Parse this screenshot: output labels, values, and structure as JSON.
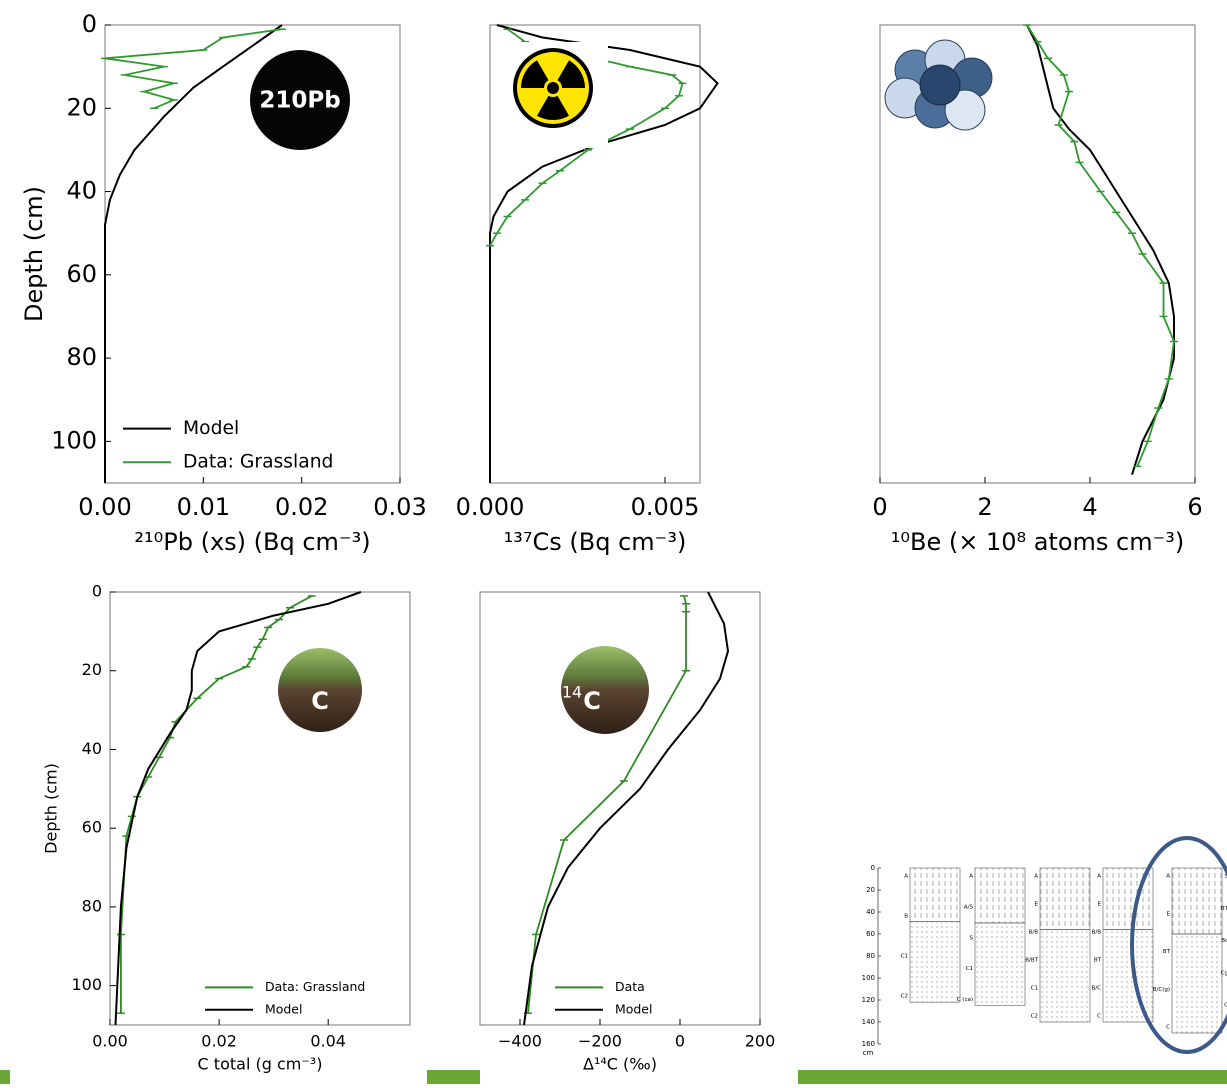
{
  "chart_data": [
    {
      "type": "line",
      "xlabel": "²¹⁰Pb (xs) (Bq cm⁻³)",
      "ylabel": "Depth (cm)",
      "annotation": "210Pb",
      "xlim": [
        0,
        0.03
      ],
      "xticks": [
        {
          "value": 0,
          "label": "0.00"
        },
        0.01,
        0.02,
        0.03
      ],
      "ylim": [
        0,
        110
      ],
      "yticks": [
        0,
        20,
        40,
        60,
        80,
        100
      ],
      "y_inverted": true,
      "legend": "lower left",
      "series": [
        {
          "name": "Model",
          "color": "#000000",
          "x": [
            0.018,
            0.015,
            0.012,
            0.009,
            0.006,
            0.003,
            0.0015,
            0.0005,
            0,
            0
          ],
          "y": [
            0,
            5,
            10,
            15,
            22,
            30,
            36,
            42,
            48,
            110
          ]
        },
        {
          "name": "Data: Grassland",
          "color": "#2e9a2e",
          "x": [
            0.018,
            0.012,
            0.01,
            0,
            0.006,
            0.002,
            0.007,
            0.004,
            0.007,
            0.005
          ],
          "y": [
            1,
            3,
            6,
            8,
            10,
            12,
            14,
            16,
            18,
            20
          ]
        }
      ]
    },
    {
      "type": "line",
      "xlabel": "¹³⁷Cs (Bq cm⁻³)",
      "xlim": [
        0,
        0.006
      ],
      "xticks": [
        {
          "value": 0,
          "label": "0.000"
        },
        0.005
      ],
      "ylim": [
        0,
        110
      ],
      "y_inverted": true,
      "series": [
        {
          "color": "#000000",
          "x": [
            0.0002,
            0.0015,
            0.004,
            0.006,
            0.0065,
            0.006,
            0.005,
            0.003,
            0.0015,
            0.0005,
            0.0001,
            0,
            0
          ],
          "y": [
            0,
            3,
            6,
            10,
            14,
            20,
            24,
            29,
            34,
            40,
            46,
            50,
            110
          ]
        },
        {
          "color": "#2e9a2e",
          "x": [
            0.0005,
            0.001,
            0.0025,
            0.004,
            0.0052,
            0.0055,
            0.0054,
            0.005,
            0.004,
            0.0028,
            0.002,
            0.0015,
            0.001,
            0.0005,
            0.0002,
            0
          ],
          "y": [
            1,
            4,
            7,
            10,
            12,
            14,
            17,
            20,
            25,
            30,
            35,
            38,
            42,
            46,
            50,
            53
          ]
        }
      ]
    },
    {
      "type": "line",
      "xlabel": "¹⁰Be (× 10⁸  atoms cm⁻³)",
      "xlim": [
        0,
        6
      ],
      "xticks": [
        0,
        2,
        4,
        6
      ],
      "ylim": [
        0,
        110
      ],
      "y_inverted": true,
      "series": [
        {
          "color": "#000000",
          "x": [
            2.8,
            3.0,
            3.1,
            3.2,
            3.3,
            3.6,
            4.0,
            4.3,
            4.6,
            4.9,
            5.2,
            5.5,
            5.6,
            5.6,
            5.4,
            5.0,
            4.8
          ],
          "y": [
            0,
            5,
            10,
            15,
            20,
            25,
            30,
            36,
            42,
            48,
            54,
            62,
            70,
            80,
            90,
            100,
            108
          ]
        },
        {
          "color": "#2e9a2e",
          "x": [
            2.8,
            3.0,
            3.2,
            3.5,
            3.6,
            3.4,
            3.7,
            3.8,
            4.2,
            4.5,
            4.8,
            5.0,
            5.4,
            5.4,
            5.6,
            5.5,
            5.3,
            5.1,
            4.9
          ],
          "y": [
            0,
            4,
            8,
            12,
            16,
            24,
            28,
            33,
            40,
            45,
            50,
            55,
            62,
            70,
            76,
            85,
            92,
            100,
            106
          ]
        }
      ]
    },
    {
      "type": "line",
      "xlabel": "C total (g cm⁻³)",
      "ylabel": "Depth (cm)",
      "annotation": "C",
      "xlim": [
        0,
        0.055
      ],
      "xticks": [
        {
          "value": 0,
          "label": "0.00"
        },
        0.02,
        0.04
      ],
      "ylim": [
        0,
        110
      ],
      "yticks": [
        0,
        20,
        40,
        60,
        80,
        100
      ],
      "y_inverted": true,
      "legend": "lower right",
      "series": [
        {
          "name": "Data: Grassland",
          "color": "#2e8b22",
          "x": [
            0.037,
            0.033,
            0.031,
            0.029,
            0.028,
            0.027,
            0.026,
            0.025,
            0.02,
            0.016,
            0.012,
            0.011,
            0.009,
            0.007,
            0.005,
            0.004,
            0.003,
            0.002,
            0.002
          ],
          "y": [
            1,
            4,
            7,
            9,
            12,
            14,
            17,
            19,
            22,
            27,
            33,
            37,
            42,
            47,
            52,
            57,
            62,
            87,
            107
          ]
        },
        {
          "name": "Model",
          "color": "#000000",
          "x": [
            0.046,
            0.04,
            0.03,
            0.02,
            0.016,
            0.015,
            0.015,
            0.014,
            0.011,
            0.007,
            0.005,
            0.003,
            0.002,
            0.0015,
            0.001
          ],
          "y": [
            0,
            3,
            6,
            10,
            15,
            20,
            25,
            30,
            36,
            45,
            52,
            65,
            80,
            95,
            110
          ]
        }
      ]
    },
    {
      "type": "line",
      "xlabel": "Δ¹⁴C (‰)",
      "annotation": "C",
      "annotation_sup": "14",
      "xlim": [
        -500,
        200
      ],
      "xticks": [
        {
          "value": -400,
          "label": "−400"
        },
        {
          "value": -200,
          "label": "−200"
        },
        0,
        200
      ],
      "ylim": [
        0,
        110
      ],
      "y_inverted": true,
      "legend": "lower right",
      "series": [
        {
          "name": "Data",
          "color": "#2e8b22",
          "x": [
            10,
            15,
            15,
            15,
            -140,
            -290,
            -360,
            -380
          ],
          "y": [
            1,
            3,
            5,
            20,
            48,
            63,
            87,
            107
          ]
        },
        {
          "name": "Model",
          "color": "#000000",
          "x": [
            70,
            110,
            120,
            100,
            50,
            -30,
            -100,
            -200,
            -280,
            -330,
            -370,
            -390
          ],
          "y": [
            0,
            8,
            15,
            22,
            30,
            40,
            50,
            60,
            70,
            80,
            95,
            110
          ]
        }
      ]
    }
  ],
  "soil_diagram": {
    "depth_ticks": [
      0,
      20,
      40,
      60,
      80,
      100,
      120,
      140,
      160
    ],
    "unit": "cm",
    "columns": [
      {
        "horizons": [
          "A",
          "B",
          "C1",
          "C2"
        ]
      },
      {
        "horizons": [
          "A",
          "A/S",
          "S",
          "C1",
          "C (ca)"
        ]
      },
      {
        "horizons": [
          "A",
          "E",
          "B/B",
          "B/BT",
          "C1",
          "C2"
        ]
      },
      {
        "horizons": [
          "A",
          "E",
          "B/B",
          "BT",
          "B/C",
          "C"
        ]
      },
      {
        "horizons": [
          "A",
          "E",
          "BT",
          "B/C(g)",
          "C"
        ]
      },
      {
        "horizons": [
          "S",
          "BT",
          "Bc",
          "Cg",
          "C"
        ]
      }
    ]
  }
}
